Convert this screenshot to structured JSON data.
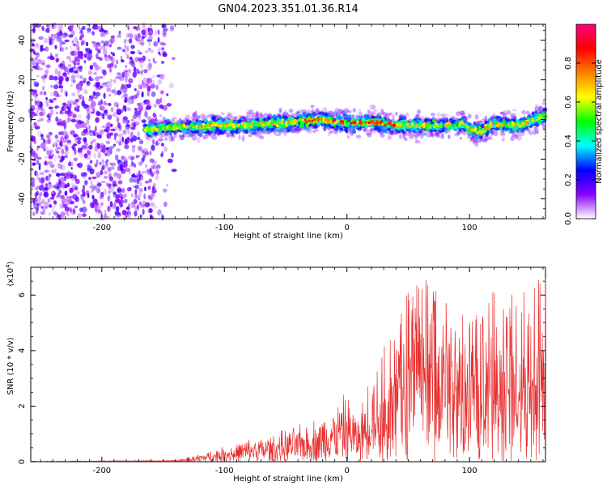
{
  "title": "GN04.2023.351.01.36.R14",
  "colors": {
    "snr_line": "#e83030",
    "axis": "#000000"
  },
  "chart_data": [
    {
      "type": "heatmap",
      "xlabel": "Height of straight line (km)",
      "ylabel": "Frequency (Hz)",
      "xlim": [
        -258,
        162
      ],
      "ylim": [
        -50,
        48
      ],
      "x_ticks": [
        -200,
        -100,
        0,
        100
      ],
      "y_ticks": [
        -40,
        -20,
        0,
        20,
        40
      ],
      "colorbar": {
        "label": "Normalized spectral amplitude",
        "range": [
          0,
          1
        ],
        "ticks": [
          "0.0",
          "0.2",
          "0.4",
          "0.6",
          "0.8"
        ],
        "colormap": [
          "#ffffff",
          "#8a00ff",
          "#0000ff",
          "#00ffff",
          "#00ff00",
          "#ffff00",
          "#ff8000",
          "#ff0000",
          "#ff0080"
        ]
      },
      "noise_region": {
        "x_range": [
          -258,
          -140
        ],
        "y_range": [
          -50,
          48
        ],
        "amplitude": 0.3
      },
      "signal_trace": {
        "x": [
          -165,
          -140,
          -120,
          -100,
          -80,
          -60,
          -40,
          -20,
          0,
          20,
          40,
          60,
          80,
          95,
          100,
          110,
          120,
          140,
          162
        ],
        "y": [
          -5,
          -4,
          -3.5,
          -3,
          -3,
          -2,
          -1,
          0,
          -2,
          -1,
          -3,
          -3,
          -3,
          -2,
          -5,
          -6,
          -2,
          -3,
          2
        ],
        "peak_amplitude": 0.95
      }
    },
    {
      "type": "line",
      "xlabel": "Height of straight line (km)",
      "ylabel": "SNR (10 * v/v)",
      "y_multiplier": "(x10",
      "y_multiplier_exp": "4",
      "y_multiplier_close": ")",
      "xlim": [
        -258,
        162
      ],
      "ylim": [
        0,
        7
      ],
      "x_ticks": [
        -200,
        -100,
        0,
        100
      ],
      "y_ticks": [
        0,
        2,
        4,
        6
      ],
      "envelope": {
        "x": [
          -258,
          -140,
          -120,
          -100,
          -80,
          -60,
          -40,
          -20,
          -10,
          0,
          10,
          20,
          40,
          50,
          60,
          80,
          100,
          120,
          140,
          162
        ],
        "y": [
          0.02,
          0.05,
          0.3,
          0.6,
          0.9,
          1.1,
          1.4,
          1.8,
          2.3,
          2.7,
          1.8,
          4.0,
          4.6,
          6.3,
          6.7,
          6.2,
          5.3,
          6.2,
          6.0,
          7.0
        ]
      }
    }
  ]
}
